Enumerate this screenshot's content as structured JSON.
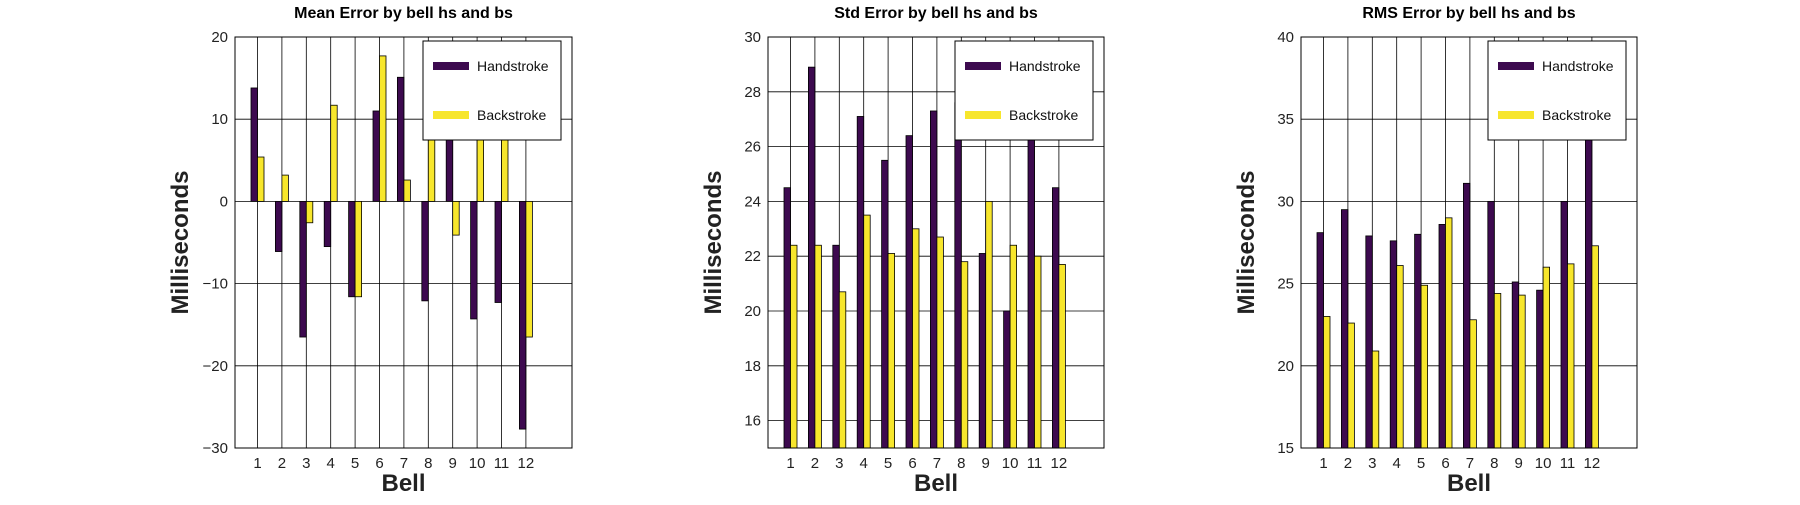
{
  "colors": {
    "handstroke": "#3d0a4f",
    "backstroke": "#f7e62c",
    "axis": "#000000",
    "grid": "#000000",
    "background": "#ffffff"
  },
  "chart_data": [
    {
      "type": "bar",
      "title": "Mean Error by bell hs and bs",
      "xlabel": "Bell",
      "ylabel": "Milliseconds",
      "categories": [
        "1",
        "2",
        "3",
        "4",
        "5",
        "6",
        "7",
        "8",
        "9",
        "10",
        "11",
        "12"
      ],
      "ylim": [
        -30,
        20
      ],
      "yticks": [
        "−30",
        "−20",
        "−10",
        "0",
        "10",
        "20"
      ],
      "ytick_values": [
        -30,
        -20,
        -10,
        0,
        10,
        20
      ],
      "grid": true,
      "legend_position": "top-right",
      "series": [
        {
          "name": "Handstroke",
          "values": [
            13.8,
            -6.1,
            -16.5,
            -5.5,
            -11.6,
            11.0,
            15.1,
            -12.1,
            12.0,
            -14.3,
            -12.3,
            -27.7
          ]
        },
        {
          "name": "Backstroke",
          "values": [
            5.4,
            3.2,
            -2.6,
            11.7,
            -11.6,
            17.7,
            2.6,
            11.0,
            -4.1,
            13.4,
            14.6,
            -16.5
          ]
        }
      ]
    },
    {
      "type": "bar",
      "title": "Std Error by bell hs and bs",
      "xlabel": "Bell",
      "ylabel": "Milliseconds",
      "categories": [
        "1",
        "2",
        "3",
        "4",
        "5",
        "6",
        "7",
        "8",
        "9",
        "10",
        "11",
        "12"
      ],
      "ylim": [
        15,
        30
      ],
      "yticks": [
        "16",
        "18",
        "20",
        "22",
        "24",
        "26",
        "28",
        "30"
      ],
      "ytick_values": [
        16,
        18,
        20,
        22,
        24,
        26,
        28,
        30
      ],
      "grid": true,
      "legend_position": "top-right",
      "series": [
        {
          "name": "Handstroke",
          "values": [
            24.5,
            28.9,
            22.4,
            27.1,
            25.5,
            26.4,
            27.3,
            27.6,
            22.1,
            20.0,
            27.3,
            24.5
          ]
        },
        {
          "name": "Backstroke",
          "values": [
            22.4,
            22.4,
            20.7,
            23.5,
            22.1,
            23.0,
            22.7,
            21.8,
            24.0,
            22.4,
            22.0,
            21.7
          ]
        }
      ]
    },
    {
      "type": "bar",
      "title": "RMS Error by bell hs and bs",
      "xlabel": "Bell",
      "ylabel": "Milliseconds",
      "categories": [
        "1",
        "2",
        "3",
        "4",
        "5",
        "6",
        "7",
        "8",
        "9",
        "10",
        "11",
        "12"
      ],
      "ylim": [
        15,
        40
      ],
      "yticks": [
        "15",
        "20",
        "25",
        "30",
        "35",
        "40"
      ],
      "ytick_values": [
        15,
        20,
        25,
        30,
        35,
        40
      ],
      "grid": true,
      "legend_position": "top-right",
      "series": [
        {
          "name": "Handstroke",
          "values": [
            28.1,
            29.5,
            27.9,
            27.6,
            28.0,
            28.6,
            31.1,
            30.0,
            25.1,
            24.6,
            30.0,
            37.0
          ]
        },
        {
          "name": "Backstroke",
          "values": [
            23.0,
            22.6,
            20.9,
            26.1,
            24.9,
            29.0,
            22.8,
            24.4,
            24.3,
            26.0,
            26.2,
            27.3
          ]
        }
      ]
    }
  ]
}
